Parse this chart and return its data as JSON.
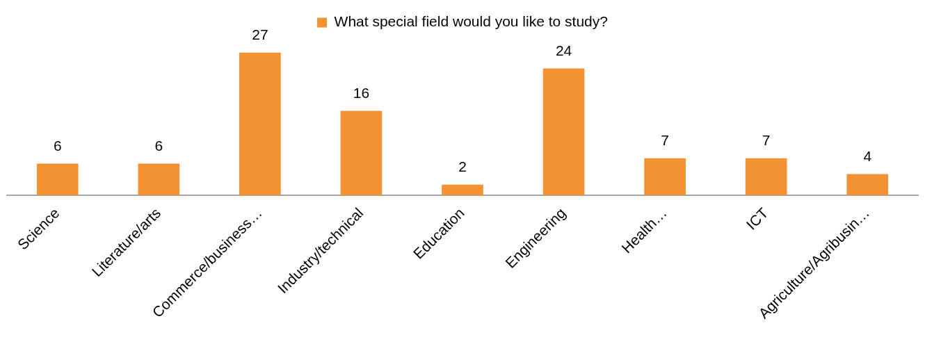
{
  "chart_data": {
    "type": "bar",
    "categories": [
      "Science",
      "Literature/arts",
      "Commerce/business…",
      "Industry/technical",
      "Education",
      "Engineering",
      "Health…",
      "ICT",
      "Agriculture/Agribusin…"
    ],
    "series": [
      {
        "name": "What special field would you like to study?",
        "color": "#f39232",
        "values": [
          6,
          6,
          27,
          16,
          2,
          24,
          7,
          7,
          4
        ]
      }
    ],
    "data_labels": true,
    "legend": "top",
    "tick_labels": "x"
  }
}
